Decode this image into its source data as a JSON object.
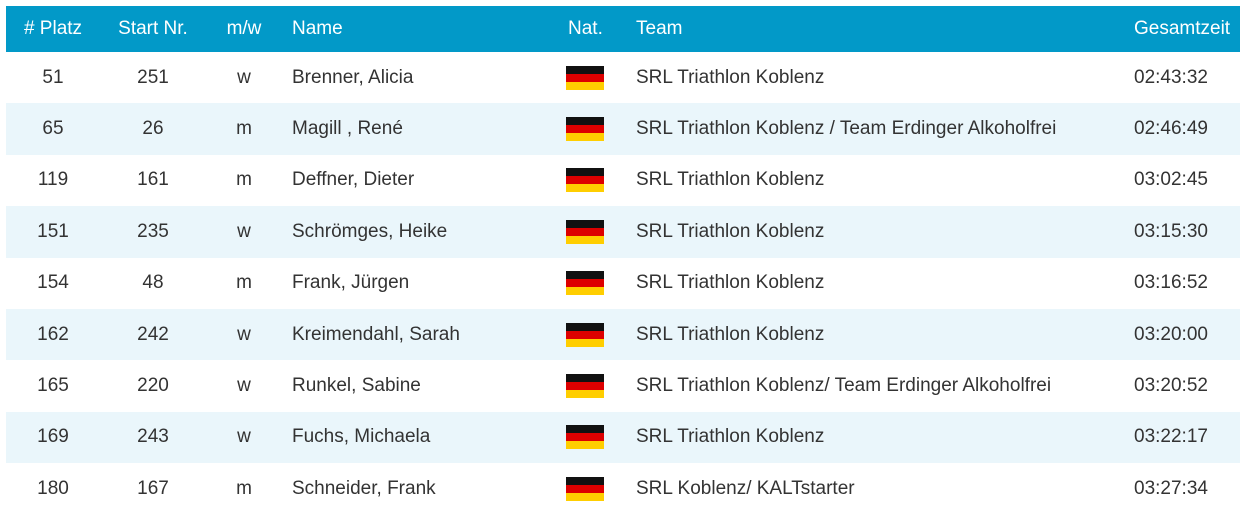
{
  "colors": {
    "header_bg": "#0299c8",
    "stripe_bg": "#eaf6fb",
    "text": "#333333"
  },
  "header": {
    "platz": "# Platz",
    "start": "Start Nr.",
    "mw": "m/w",
    "name": "Name",
    "nat": "Nat.",
    "team": "Team",
    "zeit": "Gesamtzeit"
  },
  "rows": [
    {
      "platz": "51",
      "start": "251",
      "mw": "w",
      "name": "Brenner, Alicia",
      "nat": "germany-flag-icon",
      "team": "SRL Triathlon Koblenz",
      "zeit": "02:43:32"
    },
    {
      "platz": "65",
      "start": "26",
      "mw": "m",
      "name": "Magill , René",
      "nat": "germany-flag-icon",
      "team": "SRL Triathlon Koblenz / Team Erdinger Alkoholfrei",
      "zeit": "02:46:49"
    },
    {
      "platz": "119",
      "start": "161",
      "mw": "m",
      "name": "Deffner, Dieter",
      "nat": "germany-flag-icon",
      "team": "SRL Triathlon Koblenz",
      "zeit": "03:02:45"
    },
    {
      "platz": "151",
      "start": "235",
      "mw": "w",
      "name": "Schrömges, Heike",
      "nat": "germany-flag-icon",
      "team": "SRL Triathlon Koblenz",
      "zeit": "03:15:30"
    },
    {
      "platz": "154",
      "start": "48",
      "mw": "m",
      "name": "Frank, Jürgen",
      "nat": "germany-flag-icon",
      "team": "SRL Triathlon Koblenz",
      "zeit": "03:16:52"
    },
    {
      "platz": "162",
      "start": "242",
      "mw": "w",
      "name": "Kreimendahl, Sarah",
      "nat": "germany-flag-icon",
      "team": "SRL Triathlon Koblenz",
      "zeit": "03:20:00"
    },
    {
      "platz": "165",
      "start": "220",
      "mw": "w",
      "name": "Runkel, Sabine",
      "nat": "germany-flag-icon",
      "team": "SRL Triathlon Koblenz/ Team Erdinger Alkoholfrei",
      "zeit": "03:20:52"
    },
    {
      "platz": "169",
      "start": "243",
      "mw": "w",
      "name": "Fuchs, Michaela",
      "nat": "germany-flag-icon",
      "team": "SRL Triathlon Koblenz",
      "zeit": "03:22:17"
    },
    {
      "platz": "180",
      "start": "167",
      "mw": "m",
      "name": "Schneider, Frank",
      "nat": "germany-flag-icon",
      "team": "SRL Koblenz/ KALTstarter",
      "zeit": "03:27:34"
    }
  ]
}
